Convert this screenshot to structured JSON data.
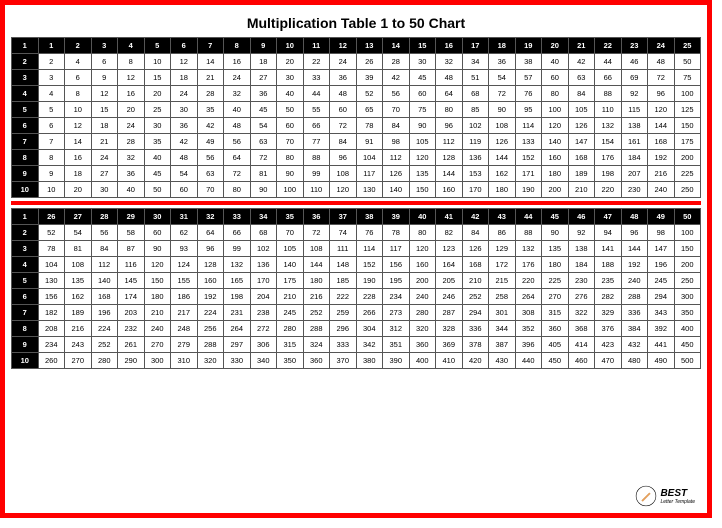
{
  "title": "Multiplication Table 1 to 50 Chart",
  "rows": 10,
  "table1": {
    "col_start": 1,
    "col_end": 25
  },
  "table2": {
    "col_start": 26,
    "col_end": 50
  },
  "colors": {
    "border_outer": "#ff0000",
    "header_bg": "#000000",
    "header_fg": "#ffffff",
    "cell_border": "#555555",
    "background": "#ffffff"
  },
  "logo": {
    "brand": "BEST",
    "sub": "Letter Template"
  }
}
